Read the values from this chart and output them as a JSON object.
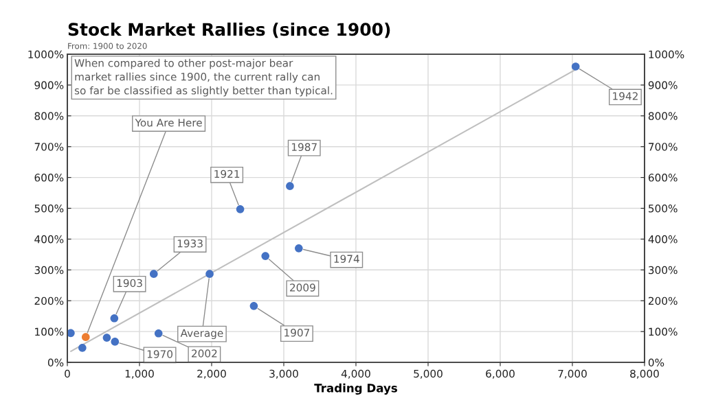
{
  "chart_data": {
    "type": "scatter",
    "title": "Stock Market Rallies (since 1900)",
    "subtitle": "From: 1900 to 2020",
    "xlabel": "Trading Days",
    "series": [
      {
        "type": "line",
        "color": "#bfbfbf",
        "x": [
          50,
          7045
        ],
        "values": [
          36,
          950
        ],
        "marker": "none"
      },
      {
        "color": "#4472c4",
        "x": [
          47,
          208,
          547,
          651,
          660,
          1198,
          1264,
          2396,
          2585,
          2745,
          3085,
          3208,
          7045
        ],
        "values": [
          95,
          47,
          80,
          143,
          67,
          287,
          94,
          497,
          183,
          345,
          572,
          370,
          960
        ]
      },
      {
        "color": "#4472c4",
        "x": [
          1972
        ],
        "values": [
          287
        ]
      },
      {
        "color": "#ed7d31",
        "x": [
          255
        ],
        "values": [
          82
        ]
      }
    ],
    "annotations": [
      "When compared to other post-major bear\nmarket rallies since 1900, the current rally can\nso far be classified as slightly better than typical.",
      {
        "text": "You Are Here",
        "x": 255,
        "y": 82
      },
      {
        "text": "1903",
        "x": 651,
        "y": 143
      },
      {
        "text": "1970",
        "x": 660,
        "y": 67
      },
      {
        "text": "1933",
        "x": 1198,
        "y": 287
      },
      {
        "text": "2002",
        "x": 1264,
        "y": 94
      },
      {
        "text": "Average",
        "x": 1972,
        "y": 287
      },
      {
        "text": "1921",
        "x": 2396,
        "y": 497
      },
      {
        "text": "1907",
        "x": 2585,
        "y": 183
      },
      {
        "text": "2009",
        "x": 2745,
        "y": 345
      },
      {
        "text": "1987",
        "x": 3085,
        "y": 572
      },
      {
        "text": "1974",
        "x": 3208,
        "y": 370
      },
      {
        "text": "1942",
        "x": 7045,
        "y": 960
      }
    ],
    "xlim": [
      0,
      8000
    ],
    "xticks": [
      0,
      {
        "value": 1000,
        "label": "1,000"
      },
      {
        "value": 2000,
        "label": "2,000"
      },
      {
        "value": 3000,
        "label": "3,000"
      },
      {
        "value": 4000,
        "label": "4,000"
      },
      {
        "value": 5000,
        "label": "5,000"
      },
      {
        "value": 6000,
        "label": "6,000"
      },
      {
        "value": 7000,
        "label": "7,000"
      },
      {
        "value": 8000,
        "label": "8,000"
      }
    ],
    "ylim": [
      0,
      1000
    ],
    "yticks": [
      {
        "value": 0,
        "label": "0%"
      },
      {
        "value": 100,
        "label": "100%"
      },
      {
        "value": 200,
        "label": "200%"
      },
      {
        "value": 300,
        "label": "300%"
      },
      {
        "value": 400,
        "label": "400%"
      },
      {
        "value": 500,
        "label": "500%"
      },
      {
        "value": 600,
        "label": "600%"
      },
      {
        "value": 700,
        "label": "700%"
      },
      {
        "value": 800,
        "label": "800%"
      },
      {
        "value": 900,
        "label": "900%"
      },
      {
        "value": 1000,
        "label": "1000%"
      }
    ],
    "y2lim": [
      0,
      1000
    ],
    "y2ticks": [
      {
        "value": 0,
        "label": "0%"
      },
      {
        "value": 100,
        "label": "100%"
      },
      {
        "value": 200,
        "label": "200%"
      },
      {
        "value": 300,
        "label": "300%"
      },
      {
        "value": 400,
        "label": "400%"
      },
      {
        "value": 500,
        "label": "500%"
      },
      {
        "value": 600,
        "label": "600%"
      },
      {
        "value": 700,
        "label": "700%"
      },
      {
        "value": 800,
        "label": "800%"
      },
      {
        "value": 900,
        "label": "900%"
      },
      {
        "value": 1000,
        "label": "1000%"
      }
    ],
    "grid": true,
    "marker": "circle"
  }
}
